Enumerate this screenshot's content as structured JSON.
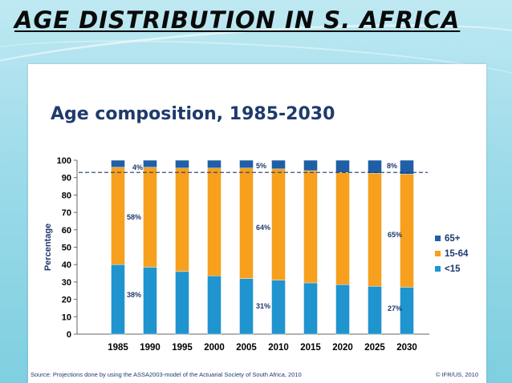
{
  "slide": {
    "title": "AGE DISTRIBUTION IN S. AFRICA"
  },
  "panel": {
    "heading": "Age composition, 1985-2030",
    "source": "Source: Projections done by using the ASSA2003-model of the Actuarial Society of South Africa, 2010",
    "copyright": "© IFR/US, 2010"
  },
  "colors": {
    "lt15": "#1f94cf",
    "mid": "#f6a01e",
    "old": "#1f5fa6",
    "refline": "#1f3a6d"
  },
  "chart_data": {
    "type": "bar",
    "stacked": true,
    "categories": [
      "1985",
      "1990",
      "1995",
      "2000",
      "2005",
      "2010",
      "2015",
      "2020",
      "2025",
      "2030"
    ],
    "series": [
      {
        "name": "<15",
        "values": [
          40,
          38.5,
          36,
          33.5,
          32,
          31,
          29.5,
          28.5,
          27.5,
          27
        ]
      },
      {
        "name": "15-64",
        "values": [
          56,
          57.5,
          59.5,
          62,
          63.5,
          64,
          64.5,
          64.5,
          65,
          65
        ]
      },
      {
        "name": "65+",
        "values": [
          4,
          4,
          4.5,
          4.5,
          4.5,
          5,
          6,
          7,
          7.5,
          8
        ]
      }
    ],
    "annotations": [
      "4%",
      "58%",
      "38%",
      "5%",
      "64%",
      "31%",
      "8%",
      "65%",
      "27%"
    ],
    "ylabel": "Percentage",
    "ylim": [
      0,
      100
    ],
    "yticks": [
      "0",
      "10",
      "20",
      "30",
      "40",
      "50",
      "60",
      "70",
      "80",
      "90",
      "100"
    ],
    "reference_line": 93,
    "legend_position": "right",
    "grid": false
  }
}
